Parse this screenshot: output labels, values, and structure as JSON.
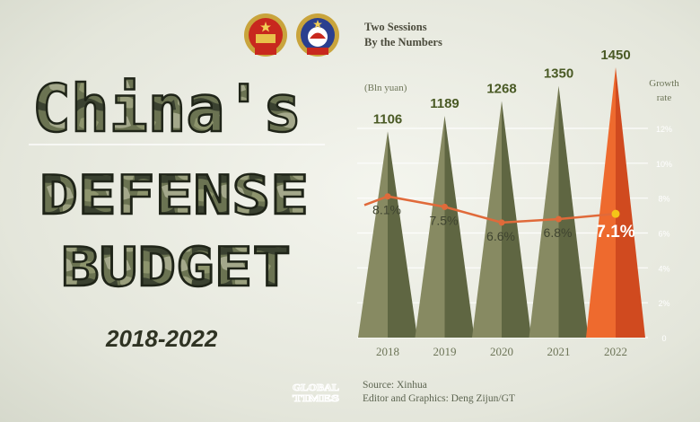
{
  "header": {
    "line1": "Two Sessions",
    "line2": "By the Numbers"
  },
  "title": {
    "word1": "China's",
    "word2": "DEFENSE",
    "word3": "BUDGET"
  },
  "years_range": "2018-2022",
  "footer": {
    "logo_line1": "GLOBAL",
    "logo_line2": "TIMES",
    "source": "Source: Xinhua",
    "editor": "Editor and Graphics: Deng Zijun/GT"
  },
  "colors": {
    "olive_light": "#878a62",
    "olive_dark": "#5f6642",
    "highlight": "#e8642e",
    "line": "#e06a3a",
    "marker_last": "#f5c518",
    "value_text": "#4a5a25"
  },
  "chart_data": {
    "type": "bar",
    "unit_label": "(Bln yuan)",
    "right_axis_label_line1": "Growth",
    "right_axis_label_line2": "rate",
    "categories": [
      "2018",
      "2019",
      "2020",
      "2021",
      "2022"
    ],
    "series": [
      {
        "name": "",
        "values": [
          1106,
          1189,
          1268,
          1350,
          1450
        ]
      },
      {
        "name": "",
        "values": [
          8.1,
          7.5,
          6.6,
          6.8,
          7.1
        ]
      }
    ],
    "value_labels": [
      "1106",
      "1189",
      "1268",
      "1350",
      "1450"
    ],
    "rate_labels": [
      "8.1%",
      "7.5%",
      "6.6%",
      "6.8%",
      "7.1%"
    ],
    "right_ticks": [
      "0",
      "2%",
      "4%",
      "6%",
      "8%",
      "10%",
      "12%"
    ],
    "right_ylim": [
      0,
      12
    ],
    "highlight_index": 4
  }
}
